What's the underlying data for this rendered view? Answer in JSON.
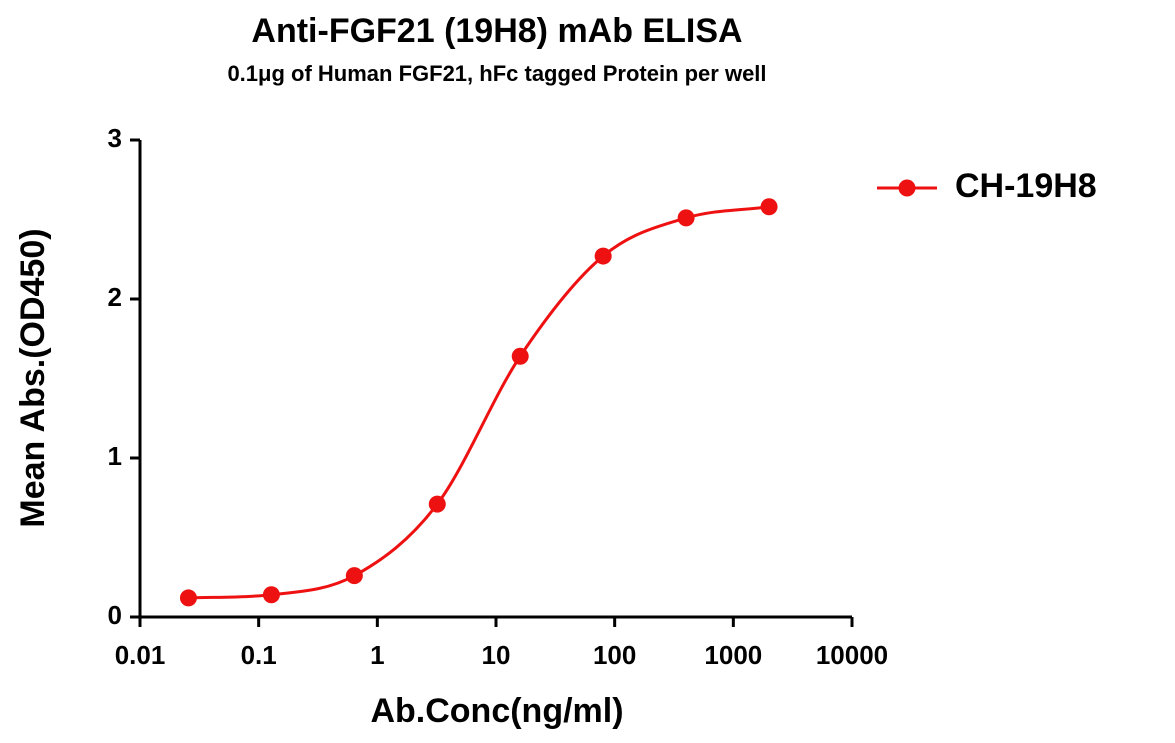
{
  "chart_data": {
    "type": "line",
    "title": "Anti-FGF21 (19H8) mAb ELISA",
    "subtitle": "0.1μg of Human FGF21, hFc tagged Protein per well",
    "x_label": "Ab.Conc(ng/ml)",
    "y_label": "Mean Abs.(OD450)",
    "x": [
      0.0256,
      0.128,
      0.64,
      3.2,
      16,
      80,
      400,
      2000
    ],
    "series": [
      {
        "name": "CH-19H8",
        "color": "#ee1111",
        "values": [
          0.12,
          0.14,
          0.26,
          0.71,
          1.64,
          2.27,
          2.51,
          2.58
        ]
      }
    ],
    "x_scale": "log",
    "xlim": [
      0.01,
      10000
    ],
    "xticks": [
      0.01,
      0.1,
      1,
      10,
      100,
      1000,
      10000
    ],
    "ylim": [
      0,
      3
    ],
    "yticks": [
      0,
      1,
      2,
      3
    ],
    "grid": false,
    "legend": "right"
  }
}
